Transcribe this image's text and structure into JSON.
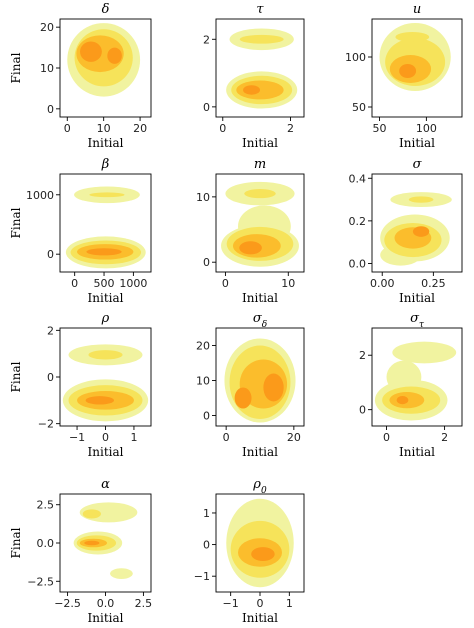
{
  "figure": {
    "xlabel": "Initial",
    "ylabel": "Final",
    "colors": {
      "level1": "#f1f3a0",
      "level2": "#f6e35a",
      "level3": "#fbbd2c",
      "level4": "#fb9a1a"
    }
  },
  "chart_data": [
    {
      "type": "heatmap",
      "title": "δ",
      "subtitle_markup": "δ",
      "xlabel": "Initial",
      "ylabel": "Final",
      "xlim": [
        -2,
        23
      ],
      "ylim": [
        -2,
        22
      ],
      "xticks": [
        {
          "v": 0,
          "label": "0"
        },
        {
          "v": 10,
          "label": "10"
        },
        {
          "v": 20,
          "label": "20"
        }
      ],
      "yticks": [
        {
          "v": 0,
          "label": "0"
        },
        {
          "v": 10,
          "label": "10"
        },
        {
          "v": 20,
          "label": "20"
        }
      ],
      "regions": [
        {
          "cx": 10,
          "cy": 12,
          "rx": 10,
          "ry": 9,
          "level": 1
        },
        {
          "cx": 10,
          "cy": 12.5,
          "rx": 8,
          "ry": 7,
          "level": 2
        },
        {
          "cx": 9,
          "cy": 13.5,
          "rx": 6.5,
          "ry": 4.5,
          "level": 3
        },
        {
          "cx": 6.5,
          "cy": 14,
          "rx": 3,
          "ry": 2.5,
          "level": 4
        },
        {
          "cx": 13,
          "cy": 13,
          "rx": 2,
          "ry": 2,
          "level": 4
        }
      ]
    },
    {
      "type": "heatmap",
      "title": "τ",
      "subtitle_markup": "τ",
      "xlabel": "Initial",
      "ylabel": "Final",
      "xlim": [
        -0.2,
        2.4
      ],
      "ylim": [
        -0.3,
        2.6
      ],
      "xticks": [
        {
          "v": 0,
          "label": "0"
        },
        {
          "v": 2,
          "label": "2"
        }
      ],
      "yticks": [
        {
          "v": 0,
          "label": "0"
        },
        {
          "v": 2,
          "label": "2"
        }
      ],
      "regions": [
        {
          "cx": 1.15,
          "cy": 2.0,
          "rx": 0.95,
          "ry": 0.32,
          "level": 1
        },
        {
          "cx": 1.15,
          "cy": 2.0,
          "rx": 0.65,
          "ry": 0.13,
          "level": 2
        },
        {
          "cx": 1.15,
          "cy": 0.5,
          "rx": 1.05,
          "ry": 0.55,
          "level": 1
        },
        {
          "cx": 1.15,
          "cy": 0.5,
          "rx": 0.9,
          "ry": 0.42,
          "level": 2
        },
        {
          "cx": 1.1,
          "cy": 0.5,
          "rx": 0.7,
          "ry": 0.28,
          "level": 3
        },
        {
          "cx": 0.85,
          "cy": 0.5,
          "rx": 0.25,
          "ry": 0.14,
          "level": 4
        }
      ]
    },
    {
      "type": "heatmap",
      "title": "u",
      "subtitle_markup": "u",
      "xlabel": "Initial",
      "ylabel": "Final",
      "xlim": [
        42,
        138
      ],
      "ylim": [
        40,
        138
      ],
      "xticks": [
        {
          "v": 50,
          "label": "50"
        },
        {
          "v": 100,
          "label": "100"
        }
      ],
      "yticks": [
        {
          "v": 50,
          "label": "50"
        },
        {
          "v": 100,
          "label": "100"
        }
      ],
      "regions": [
        {
          "cx": 88,
          "cy": 100,
          "rx": 38,
          "ry": 34,
          "level": 1
        },
        {
          "cx": 88,
          "cy": 95,
          "rx": 32,
          "ry": 24,
          "level": 2
        },
        {
          "cx": 85,
          "cy": 120,
          "rx": 18,
          "ry": 5,
          "level": 2
        },
        {
          "cx": 83,
          "cy": 88,
          "rx": 22,
          "ry": 14,
          "level": 3
        },
        {
          "cx": 80,
          "cy": 86,
          "rx": 9,
          "ry": 7,
          "level": 4
        }
      ]
    },
    {
      "type": "heatmap",
      "title": "β",
      "subtitle_markup": "β",
      "xlabel": "Initial",
      "ylabel": "Final",
      "xlim": [
        -250,
        1300
      ],
      "ylim": [
        -300,
        1350
      ],
      "xticks": [
        {
          "v": 0,
          "label": "0"
        },
        {
          "v": 500,
          "label": "500"
        },
        {
          "v": 1000,
          "label": "1000"
        }
      ],
      "yticks": [
        {
          "v": 0,
          "label": "0"
        },
        {
          "v": 1000,
          "label": "1000"
        }
      ],
      "regions": [
        {
          "cx": 550,
          "cy": 1000,
          "rx": 560,
          "ry": 140,
          "level": 1
        },
        {
          "cx": 550,
          "cy": 1000,
          "rx": 300,
          "ry": 40,
          "level": 2
        },
        {
          "cx": 530,
          "cy": 30,
          "rx": 680,
          "ry": 270,
          "level": 1
        },
        {
          "cx": 530,
          "cy": 30,
          "rx": 600,
          "ry": 200,
          "level": 2
        },
        {
          "cx": 520,
          "cy": 40,
          "rx": 480,
          "ry": 130,
          "level": 3
        },
        {
          "cx": 500,
          "cy": 40,
          "rx": 300,
          "ry": 60,
          "level": 4
        }
      ]
    },
    {
      "type": "heatmap",
      "title": "m",
      "subtitle_markup": "m",
      "xlabel": "Initial",
      "ylabel": "Final",
      "xlim": [
        -1.5,
        12.5
      ],
      "ylim": [
        -1.5,
        13.5
      ],
      "xticks": [
        {
          "v": 0,
          "label": "0"
        },
        {
          "v": 10,
          "label": "10"
        }
      ],
      "yticks": [
        {
          "v": 0,
          "label": "0"
        },
        {
          "v": 10,
          "label": "10"
        }
      ],
      "regions": [
        {
          "cx": 5.5,
          "cy": 10.5,
          "rx": 5.5,
          "ry": 1.8,
          "level": 1
        },
        {
          "cx": 5.5,
          "cy": 10.5,
          "rx": 2.5,
          "ry": 0.7,
          "level": 2
        },
        {
          "cx": 6.2,
          "cy": 5.5,
          "rx": 4.2,
          "ry": 3.2,
          "level": 1
        },
        {
          "cx": 5.5,
          "cy": 2.5,
          "rx": 6.2,
          "ry": 3.2,
          "level": 1
        },
        {
          "cx": 5.5,
          "cy": 2.8,
          "rx": 5.3,
          "ry": 2.6,
          "level": 2
        },
        {
          "cx": 5,
          "cy": 2.5,
          "rx": 3.8,
          "ry": 1.8,
          "level": 3
        },
        {
          "cx": 4,
          "cy": 2.2,
          "rx": 1.8,
          "ry": 1.0,
          "level": 4
        }
      ]
    },
    {
      "type": "heatmap",
      "title": "σ",
      "subtitle_markup": "σ",
      "xlabel": "Initial",
      "ylabel": "Final",
      "xlim": [
        -0.05,
        0.39
      ],
      "ylim": [
        -0.04,
        0.42
      ],
      "xticks": [
        {
          "v": 0.0,
          "label": "0.00"
        },
        {
          "v": 0.25,
          "label": "0.25"
        }
      ],
      "yticks": [
        {
          "v": 0.0,
          "label": "0.0"
        },
        {
          "v": 0.2,
          "label": "0.2"
        },
        {
          "v": 0.4,
          "label": "0.4"
        }
      ],
      "regions": [
        {
          "cx": 0.19,
          "cy": 0.3,
          "rx": 0.15,
          "ry": 0.035,
          "level": 1
        },
        {
          "cx": 0.19,
          "cy": 0.3,
          "rx": 0.06,
          "ry": 0.015,
          "level": 2
        },
        {
          "cx": 0.16,
          "cy": 0.12,
          "rx": 0.17,
          "ry": 0.11,
          "level": 1
        },
        {
          "cx": 0.09,
          "cy": 0.04,
          "rx": 0.1,
          "ry": 0.05,
          "level": 1
        },
        {
          "cx": 0.15,
          "cy": 0.11,
          "rx": 0.14,
          "ry": 0.08,
          "level": 2
        },
        {
          "cx": 0.15,
          "cy": 0.12,
          "rx": 0.09,
          "ry": 0.05,
          "level": 3
        },
        {
          "cx": 0.19,
          "cy": 0.15,
          "rx": 0.04,
          "ry": 0.025,
          "level": 4
        }
      ]
    },
    {
      "type": "heatmap",
      "title": "ρ",
      "subtitle_markup": "ρ",
      "xlabel": "Initial",
      "ylabel": "Final",
      "xlim": [
        -1.6,
        1.6
      ],
      "ylim": [
        -2.1,
        2.1
      ],
      "xticks": [
        {
          "v": -1,
          "label": "−1"
        },
        {
          "v": 0,
          "label": "0"
        },
        {
          "v": 1,
          "label": "1"
        }
      ],
      "yticks": [
        {
          "v": -2,
          "label": "−2"
        },
        {
          "v": 0,
          "label": "0"
        },
        {
          "v": 2,
          "label": "2"
        }
      ],
      "regions": [
        {
          "cx": 0,
          "cy": 0.95,
          "rx": 1.3,
          "ry": 0.45,
          "level": 1
        },
        {
          "cx": 0,
          "cy": 0.95,
          "rx": 0.6,
          "ry": 0.2,
          "level": 2
        },
        {
          "cx": 0,
          "cy": -1.0,
          "rx": 1.5,
          "ry": 0.9,
          "level": 1
        },
        {
          "cx": 0,
          "cy": -1.0,
          "rx": 1.3,
          "ry": 0.65,
          "level": 2
        },
        {
          "cx": 0,
          "cy": -1.0,
          "rx": 1.0,
          "ry": 0.4,
          "level": 3
        },
        {
          "cx": -0.2,
          "cy": -1.0,
          "rx": 0.5,
          "ry": 0.18,
          "level": 4
        }
      ]
    },
    {
      "type": "heatmap",
      "title": "σδ",
      "subtitle_markup": "σ<tspan baseline-shift=\"sub\" font-size=\"9\">δ</tspan>",
      "xlabel": "Initial",
      "ylabel": "Final",
      "xlim": [
        -3,
        23
      ],
      "ylim": [
        -3,
        25
      ],
      "xticks": [
        {
          "v": 0,
          "label": "0"
        },
        {
          "v": 20,
          "label": "20"
        }
      ],
      "yticks": [
        {
          "v": 0,
          "label": "0"
        },
        {
          "v": 10,
          "label": "10"
        },
        {
          "v": 20,
          "label": "20"
        }
      ],
      "regions": [
        {
          "cx": 10,
          "cy": 10,
          "rx": 10.5,
          "ry": 12,
          "level": 1
        },
        {
          "cx": 10,
          "cy": 9.5,
          "rx": 9,
          "ry": 10.5,
          "level": 2
        },
        {
          "cx": 11,
          "cy": 9,
          "rx": 7,
          "ry": 7,
          "level": 3
        },
        {
          "cx": 14,
          "cy": 8,
          "rx": 3,
          "ry": 4,
          "level": 4
        },
        {
          "cx": 5,
          "cy": 5,
          "rx": 2.5,
          "ry": 3,
          "level": 4
        }
      ]
    },
    {
      "type": "heatmap",
      "title": "στ",
      "subtitle_markup": "σ<tspan baseline-shift=\"sub\" font-size=\"9\">τ</tspan>",
      "xlabel": "Initial",
      "ylabel": "Final",
      "xlim": [
        -0.5,
        2.6
      ],
      "ylim": [
        -0.6,
        3.0
      ],
      "xticks": [
        {
          "v": 0,
          "label": "0"
        },
        {
          "v": 2,
          "label": "2"
        }
      ],
      "yticks": [
        {
          "v": 0,
          "label": "0"
        },
        {
          "v": 2,
          "label": "2"
        }
      ],
      "regions": [
        {
          "cx": 1.3,
          "cy": 2.1,
          "rx": 1.1,
          "ry": 0.4,
          "level": 1
        },
        {
          "cx": 0.6,
          "cy": 1.2,
          "rx": 0.6,
          "ry": 0.6,
          "level": 1
        },
        {
          "cx": 0.85,
          "cy": 0.35,
          "rx": 1.25,
          "ry": 0.75,
          "level": 1
        },
        {
          "cx": 0.85,
          "cy": 0.35,
          "rx": 1.0,
          "ry": 0.5,
          "level": 2
        },
        {
          "cx": 0.7,
          "cy": 0.35,
          "rx": 0.6,
          "ry": 0.3,
          "level": 3
        },
        {
          "cx": 0.55,
          "cy": 0.35,
          "rx": 0.2,
          "ry": 0.15,
          "level": 4
        }
      ]
    },
    {
      "type": "heatmap",
      "title": "α",
      "subtitle_markup": "α",
      "xlabel": "Initial",
      "ylabel": "Final",
      "xlim": [
        -3.0,
        3.0
      ],
      "ylim": [
        -3.2,
        3.2
      ],
      "xticks": [
        {
          "v": -2.5,
          "label": "−2.5"
        },
        {
          "v": 0.0,
          "label": "0.0"
        },
        {
          "v": 2.5,
          "label": "2.5"
        }
      ],
      "yticks": [
        {
          "v": -2.5,
          "label": "−2.5"
        },
        {
          "v": 0.0,
          "label": "0.0"
        },
        {
          "v": 2.5,
          "label": "2.5"
        }
      ],
      "regions": [
        {
          "cx": 0.2,
          "cy": 2.0,
          "rx": 1.9,
          "ry": 0.65,
          "level": 1
        },
        {
          "cx": -0.9,
          "cy": 1.9,
          "rx": 0.6,
          "ry": 0.3,
          "level": 2
        },
        {
          "cx": -0.5,
          "cy": 0.0,
          "rx": 1.6,
          "ry": 0.75,
          "level": 1
        },
        {
          "cx": -0.6,
          "cy": 0.0,
          "rx": 1.3,
          "ry": 0.5,
          "level": 2
        },
        {
          "cx": -0.8,
          "cy": 0.0,
          "rx": 0.9,
          "ry": 0.28,
          "level": 3
        },
        {
          "cx": -0.9,
          "cy": 0.0,
          "rx": 0.5,
          "ry": 0.15,
          "level": 4
        },
        {
          "cx": 1.05,
          "cy": -2.0,
          "rx": 0.75,
          "ry": 0.35,
          "level": 1
        }
      ]
    },
    {
      "type": "heatmap",
      "title": "ρ0",
      "subtitle_markup": "ρ<tspan baseline-shift=\"sub\" font-size=\"9\">0</tspan>",
      "xlabel": "Initial",
      "ylabel": "Final",
      "xlim": [
        -1.5,
        1.5
      ],
      "ylim": [
        -1.5,
        1.6
      ],
      "xticks": [
        {
          "v": -1,
          "label": "−1"
        },
        {
          "v": 0,
          "label": "0"
        },
        {
          "v": 1,
          "label": "1"
        }
      ],
      "yticks": [
        {
          "v": -1,
          "label": "−1"
        },
        {
          "v": 0,
          "label": "0"
        },
        {
          "v": 1,
          "label": "1"
        }
      ],
      "regions": [
        {
          "cx": 0,
          "cy": 0.05,
          "rx": 1.15,
          "ry": 1.4,
          "level": 1
        },
        {
          "cx": 0,
          "cy": -0.15,
          "rx": 1.0,
          "ry": 0.9,
          "level": 2
        },
        {
          "cx": 0,
          "cy": -0.25,
          "rx": 0.75,
          "ry": 0.45,
          "level": 3
        },
        {
          "cx": 0.1,
          "cy": -0.3,
          "rx": 0.4,
          "ry": 0.22,
          "level": 4
        }
      ]
    }
  ]
}
